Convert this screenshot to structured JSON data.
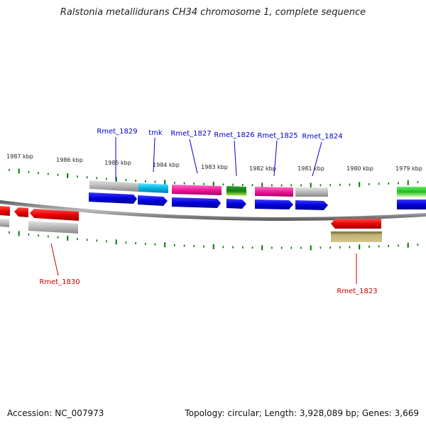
{
  "title": "Ralstonia metallidurans CH34 chromosome 1, complete sequence",
  "footer": {
    "accession": "Accession: NC_007973",
    "topology": "Topology: circular; Length: 3,928,089 bp; Genes: 3,669"
  },
  "scale_labels": [
    "1987 kbp",
    "1986 kbp",
    "1985 kbp",
    "1984 kbp",
    "1983 kbp",
    "1982 kbp",
    "1981 kbp",
    "1980 kbp",
    "1979 kbp"
  ],
  "gene_labels_forward": [
    "Rmet_1829",
    "tmk",
    "Rmet_1827",
    "Rmet_1826",
    "Rmet_1825",
    "Rmet_1824"
  ],
  "gene_labels_reverse": [
    "Rmet_1830",
    "Rmet_1823"
  ],
  "colors": {
    "forward_cds": "#0000e6",
    "reverse_cds": "#e60000",
    "forward_label": "#0000cc",
    "reverse_label": "#cc0000",
    "tick": "#007700",
    "backbone": "#777777"
  }
}
